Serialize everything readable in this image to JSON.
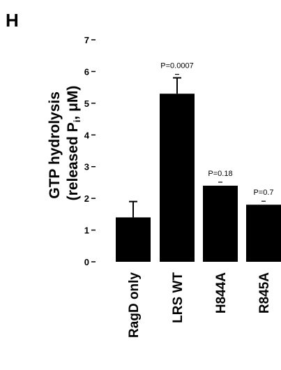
{
  "panel_label": "H",
  "chart_data": {
    "type": "bar",
    "ylabel_line1": "GTP hydrolysis",
    "ylabel_line2_pre": "(released P",
    "ylabel_line2_sub": "i",
    "ylabel_line2_post": ", μM)",
    "ylim": [
      0,
      7
    ],
    "yticks": [
      "0",
      "1",
      "2",
      "3",
      "4",
      "5",
      "6",
      "7"
    ],
    "categories": [
      "RagD only",
      "LRS WT",
      "H844A",
      "R845A"
    ],
    "values": [
      1.4,
      5.3,
      2.4,
      1.8
    ],
    "errors": [
      0.5,
      0.5,
      0,
      0
    ],
    "p_values": [
      "",
      "P=0.0007",
      "P=0.18",
      "P=0.7"
    ],
    "colors": {
      "bar": "#000000",
      "axis": "#000000"
    }
  }
}
